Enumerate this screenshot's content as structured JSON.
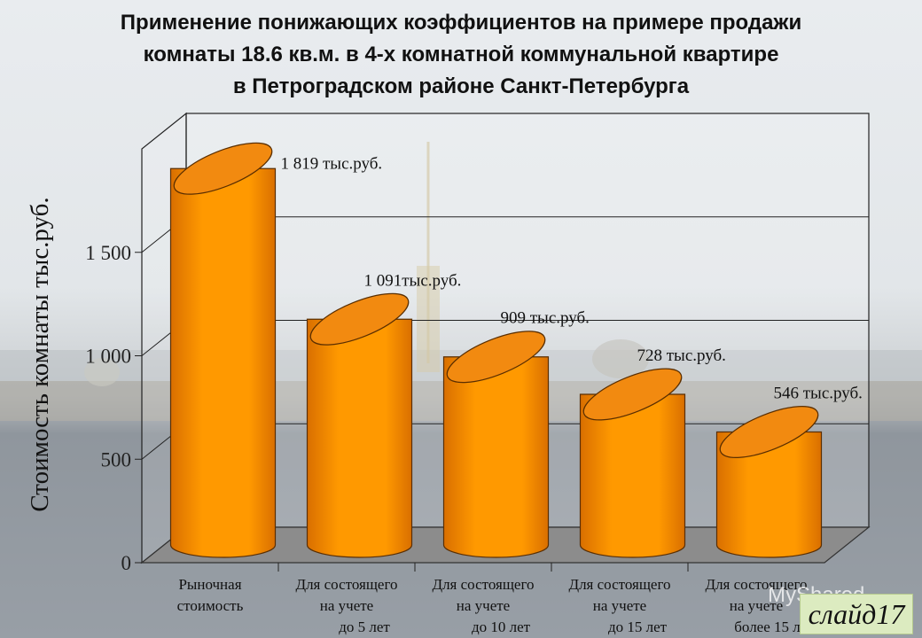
{
  "title_lines": [
    "Применение понижающих коэффициентов на примере продажи",
    "комнаты 18.6 кв.м.  в 4-х комнатной коммунальной квартире",
    "в Петроградском районе Санкт-Петербурга"
  ],
  "watermark": "MyShared",
  "slide_label": "слайд17",
  "colors": {
    "bar_front": "#ff9900",
    "bar_shade": "#d96f00",
    "bar_top": "#f28a10",
    "floor": "#8c8c8c"
  },
  "chart_data": {
    "type": "bar",
    "ylabel": "Стоимость комнаты тыс.руб.",
    "ylim": [
      0,
      2000
    ],
    "yticks": [
      {
        "value": 0,
        "label": "0"
      },
      {
        "value": 500,
        "label": "500"
      },
      {
        "value": 1000,
        "label": "1 000"
      },
      {
        "value": 1500,
        "label": "1 500"
      }
    ],
    "grid": true,
    "categories": [
      [
        "Рыночная",
        "стоимость"
      ],
      [
        "Для состоящего",
        "на учете",
        "до 5 лет"
      ],
      [
        "Для состоящего",
        "на учете",
        "до 10 лет"
      ],
      [
        "Для состоящего",
        "на учете",
        "до 15 лет"
      ],
      [
        "Для состоящего",
        "на учете",
        "более 15 лет"
      ]
    ],
    "values": [
      1819,
      1091,
      909,
      728,
      546
    ],
    "data_labels": [
      "1 819 тыс.руб.",
      "1 091тыс.руб.",
      "909 тыс.руб.",
      "728 тыс.руб.",
      "546 тыс.руб."
    ]
  }
}
